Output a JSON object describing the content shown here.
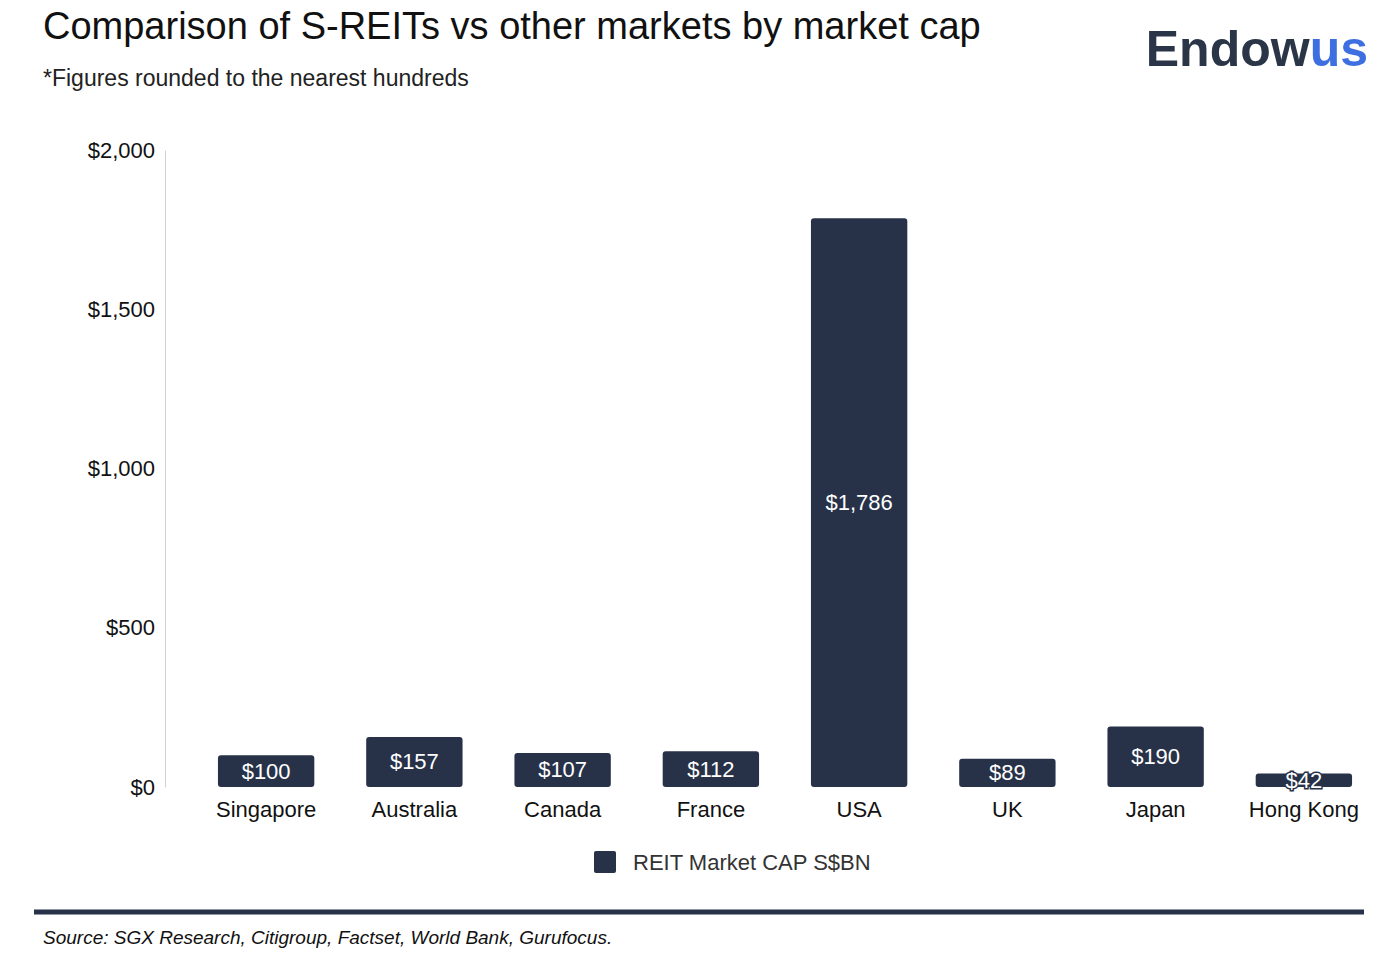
{
  "chart_data": {
    "type": "bar",
    "title": "Comparison of S-REITs vs other markets by market cap",
    "subtitle": "*Figures rounded to the nearest hundreds",
    "logo": [
      "Endow",
      "us"
    ],
    "source": "Source: SGX Research, Citigroup, Factset, World Bank, Gurufocus.",
    "categories": [
      "Singapore",
      "Australia",
      "Canada",
      "France",
      "USA",
      "UK",
      "Japan",
      "Hong Kong"
    ],
    "series": [
      {
        "name": "REIT Market CAP S$BN",
        "color": "#273249",
        "values": [
          100,
          157,
          107,
          112,
          1786,
          89,
          190,
          42
        ],
        "value_labels": [
          "$100",
          "$157",
          "$107",
          "$112",
          "$1,786",
          "$89",
          "$190",
          "$42"
        ]
      }
    ],
    "ylim": [
      0,
      2000
    ],
    "yticks": [
      {
        "value": 0,
        "label": "$0"
      },
      {
        "value": 500,
        "label": "$500"
      },
      {
        "value": 1000,
        "label": "$1,000"
      },
      {
        "value": 1500,
        "label": "$1,500"
      },
      {
        "value": 2000,
        "label": "$2,000"
      }
    ],
    "grid": false,
    "legend": "bottom",
    "data_labels": true
  }
}
